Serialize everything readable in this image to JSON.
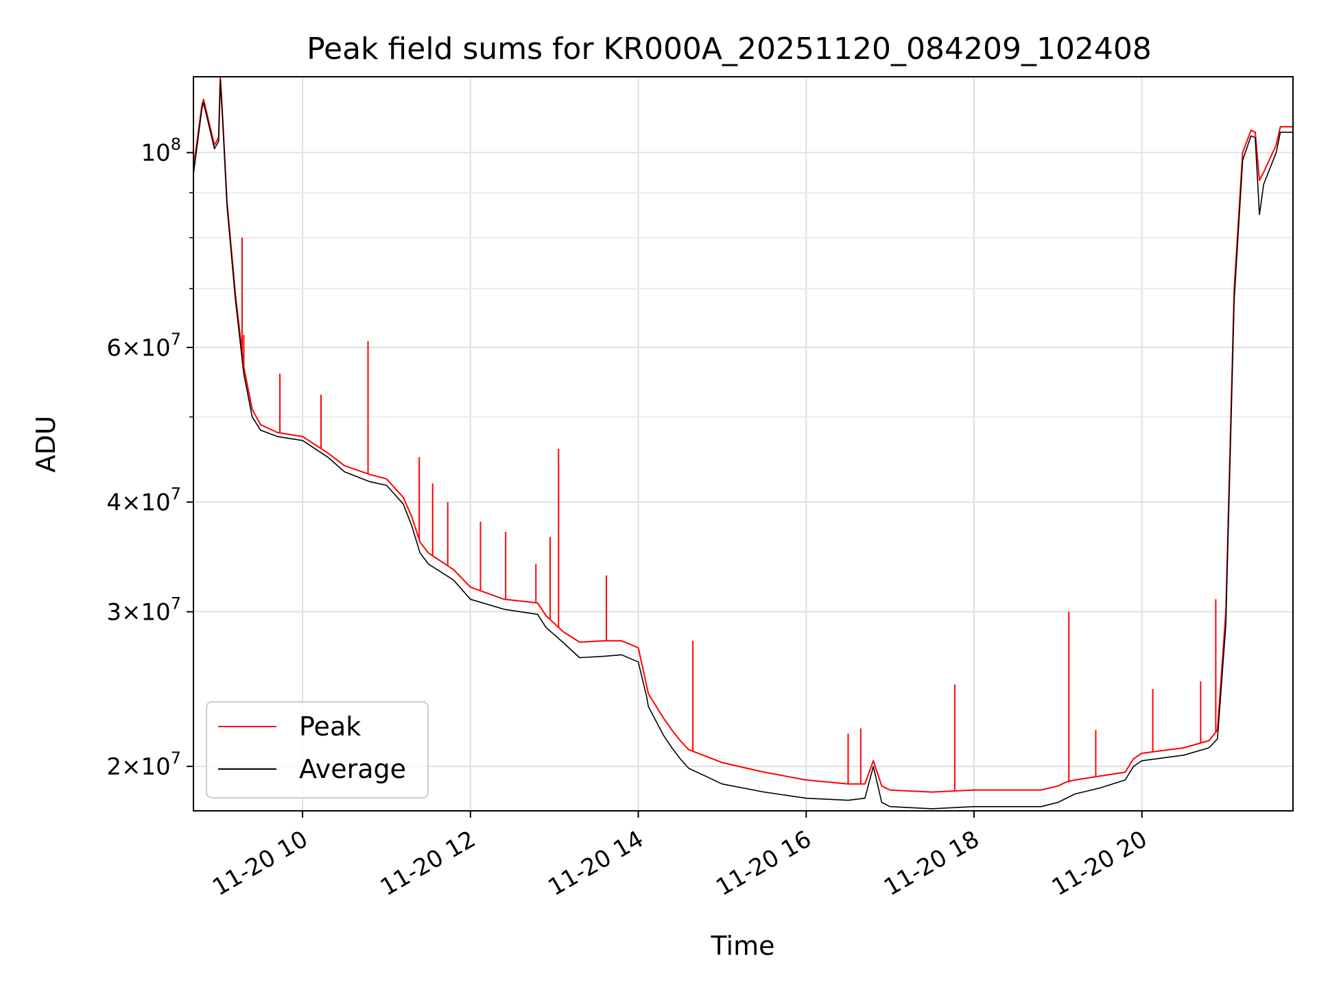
{
  "chart_data": {
    "type": "line",
    "title": "Peak field sums for KR000A_20251120_084209_102408",
    "xlabel": "Time",
    "ylabel": "ADU",
    "yscale": "log",
    "xlim_hours": [
      8.7,
      21.8
    ],
    "ylim": [
      17800000,
      122000000
    ],
    "grid": true,
    "legend_position": "lower-left",
    "x_ticks": [
      {
        "hour": 10,
        "label": "11-20 10"
      },
      {
        "hour": 12,
        "label": "11-20 12"
      },
      {
        "hour": 14,
        "label": "11-20 14"
      },
      {
        "hour": 16,
        "label": "11-20 16"
      },
      {
        "hour": 18,
        "label": "11-20 18"
      },
      {
        "hour": 20,
        "label": "11-20 20"
      }
    ],
    "y_ticks": [
      {
        "value": 20000000,
        "mant": "2",
        "exp": "7"
      },
      {
        "value": 30000000,
        "mant": "3",
        "exp": "7"
      },
      {
        "value": 40000000,
        "mant": "4",
        "exp": "7"
      },
      {
        "value": 60000000,
        "mant": "6",
        "exp": "7"
      },
      {
        "value": 100000000,
        "mant": "",
        "exp": "8"
      }
    ],
    "y_minor_ticks": [
      50000000,
      70000000,
      80000000,
      90000000
    ],
    "x_hours": [
      8.7,
      8.8,
      8.82,
      8.95,
      9.0,
      9.02,
      9.05,
      9.1,
      9.2,
      9.3,
      9.4,
      9.5,
      9.7,
      10.0,
      10.3,
      10.5,
      10.8,
      11.0,
      11.2,
      11.3,
      11.4,
      11.5,
      11.8,
      12.0,
      12.4,
      12.8,
      12.9,
      13.1,
      13.3,
      13.6,
      13.8,
      14.0,
      14.1,
      14.12,
      14.3,
      14.4,
      14.5,
      14.6,
      15.0,
      15.5,
      16.0,
      16.5,
      16.7,
      16.8,
      16.9,
      17.0,
      17.5,
      18.0,
      18.5,
      18.8,
      19.0,
      19.1,
      19.2,
      19.5,
      19.8,
      19.9,
      20.0,
      20.5,
      20.8,
      20.9,
      21.0,
      21.1,
      21.2,
      21.3,
      21.35,
      21.4,
      21.45,
      21.6,
      21.65,
      21.8
    ],
    "series": [
      {
        "name": "Peak",
        "color": "#ff0000",
        "values": [
          96000000,
          113000000,
          115000000,
          102000000,
          104000000,
          122000000,
          109000000,
          88000000,
          69000000,
          57000000,
          51000000,
          49000000,
          48000000,
          47500000,
          45500000,
          44000000,
          43000000,
          42500000,
          40500000,
          38500000,
          36000000,
          35000000,
          33500000,
          32000000,
          31000000,
          30700000,
          29700000,
          28500000,
          27700000,
          27800000,
          27800000,
          27300000,
          24700000,
          24200000,
          22700000,
          22000000,
          21400000,
          20900000,
          20200000,
          19700000,
          19300000,
          19100000,
          19100000,
          20300000,
          19000000,
          18800000,
          18700000,
          18800000,
          18800000,
          18800000,
          19000000,
          19200000,
          19300000,
          19500000,
          19700000,
          20400000,
          20700000,
          21000000,
          21400000,
          22000000,
          30000000,
          70000000,
          100000000,
          106000000,
          105500000,
          93000000,
          95000000,
          102000000,
          107000000,
          107000000
        ]
      },
      {
        "name": "Average",
        "color": "#000000",
        "values": [
          94500000,
          112000000,
          114000000,
          101000000,
          103000000,
          121000000,
          108000000,
          87000000,
          68000000,
          56000000,
          50000000,
          48300000,
          47500000,
          47000000,
          45000000,
          43300000,
          42200000,
          41800000,
          39800000,
          37600000,
          35000000,
          34000000,
          32600000,
          31000000,
          30200000,
          29800000,
          28800000,
          27700000,
          26600000,
          26700000,
          26800000,
          26300000,
          24000000,
          23400000,
          21700000,
          21000000,
          20400000,
          19900000,
          19100000,
          18700000,
          18400000,
          18300000,
          18400000,
          20000000,
          18200000,
          18000000,
          17900000,
          18000000,
          18000000,
          18000000,
          18200000,
          18400000,
          18600000,
          18900000,
          19300000,
          20000000,
          20300000,
          20600000,
          21000000,
          21500000,
          29000000,
          68000000,
          98000000,
          104500000,
          104000000,
          85000000,
          92000000,
          100000000,
          105500000,
          105500000
        ]
      }
    ],
    "peak_spikes": [
      {
        "hour": 9.28,
        "value": 80000000
      },
      {
        "hour": 9.3,
        "value": 62000000
      },
      {
        "hour": 9.73,
        "value": 56000000
      },
      {
        "hour": 10.22,
        "value": 53000000
      },
      {
        "hour": 10.78,
        "value": 61000000
      },
      {
        "hour": 11.39,
        "value": 45000000
      },
      {
        "hour": 11.55,
        "value": 42000000
      },
      {
        "hour": 11.73,
        "value": 40000000
      },
      {
        "hour": 12.12,
        "value": 38000000
      },
      {
        "hour": 12.42,
        "value": 37000000
      },
      {
        "hour": 12.78,
        "value": 34000000
      },
      {
        "hour": 12.95,
        "value": 36500000
      },
      {
        "hour": 13.05,
        "value": 46000000
      },
      {
        "hour": 13.62,
        "value": 33000000
      },
      {
        "hour": 14.65,
        "value": 27800000
      },
      {
        "hour": 16.5,
        "value": 21800000
      },
      {
        "hour": 16.65,
        "value": 22100000
      },
      {
        "hour": 17.77,
        "value": 24800000
      },
      {
        "hour": 19.13,
        "value": 30000000
      },
      {
        "hour": 19.45,
        "value": 22000000
      },
      {
        "hour": 20.13,
        "value": 24500000
      },
      {
        "hour": 20.7,
        "value": 25000000
      },
      {
        "hour": 20.88,
        "value": 31000000
      }
    ],
    "legend": [
      {
        "label": "Peak",
        "color": "#ff0000"
      },
      {
        "label": "Average",
        "color": "#000000"
      }
    ]
  }
}
